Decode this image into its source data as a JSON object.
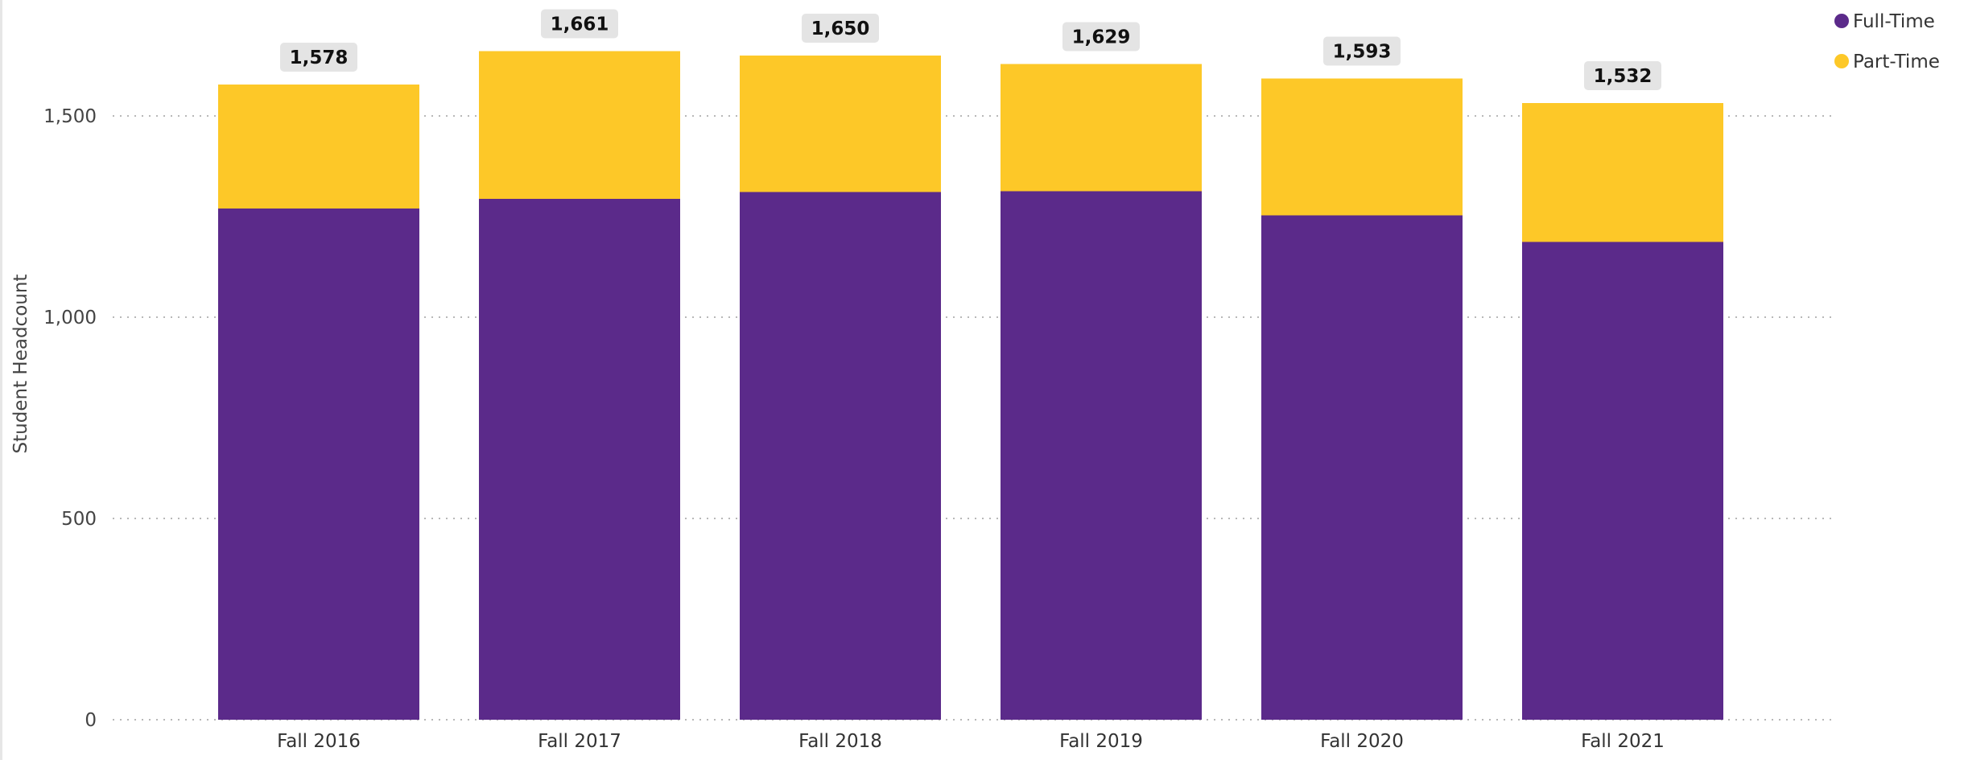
{
  "chart_data": {
    "type": "bar",
    "stacked": true,
    "title": "",
    "xlabel": "",
    "ylabel": "Student Headcount",
    "ylim": [
      0,
      1800
    ],
    "yticks": [
      0,
      500,
      1000,
      1500
    ],
    "ytick_labels": [
      "0",
      "500",
      "1,000",
      "1,500"
    ],
    "grid": "horizontal-dotted",
    "legend_position": "top-right",
    "categories": [
      "Fall 2016",
      "Fall 2017",
      "Fall 2018",
      "Fall 2019",
      "Fall 2020",
      "Fall 2021"
    ],
    "series": [
      {
        "name": "Full-Time",
        "color": "#5B2A8A",
        "values": [
          1270,
          1294,
          1311,
          1313,
          1253,
          1187
        ]
      },
      {
        "name": "Part-Time",
        "color": "#FDC828",
        "values": [
          308,
          367,
          339,
          316,
          340,
          345
        ]
      }
    ],
    "totals": [
      1578,
      1661,
      1650,
      1629,
      1593,
      1532
    ],
    "total_labels": [
      "1,578",
      "1,661",
      "1,650",
      "1,629",
      "1,593",
      "1,532"
    ]
  }
}
